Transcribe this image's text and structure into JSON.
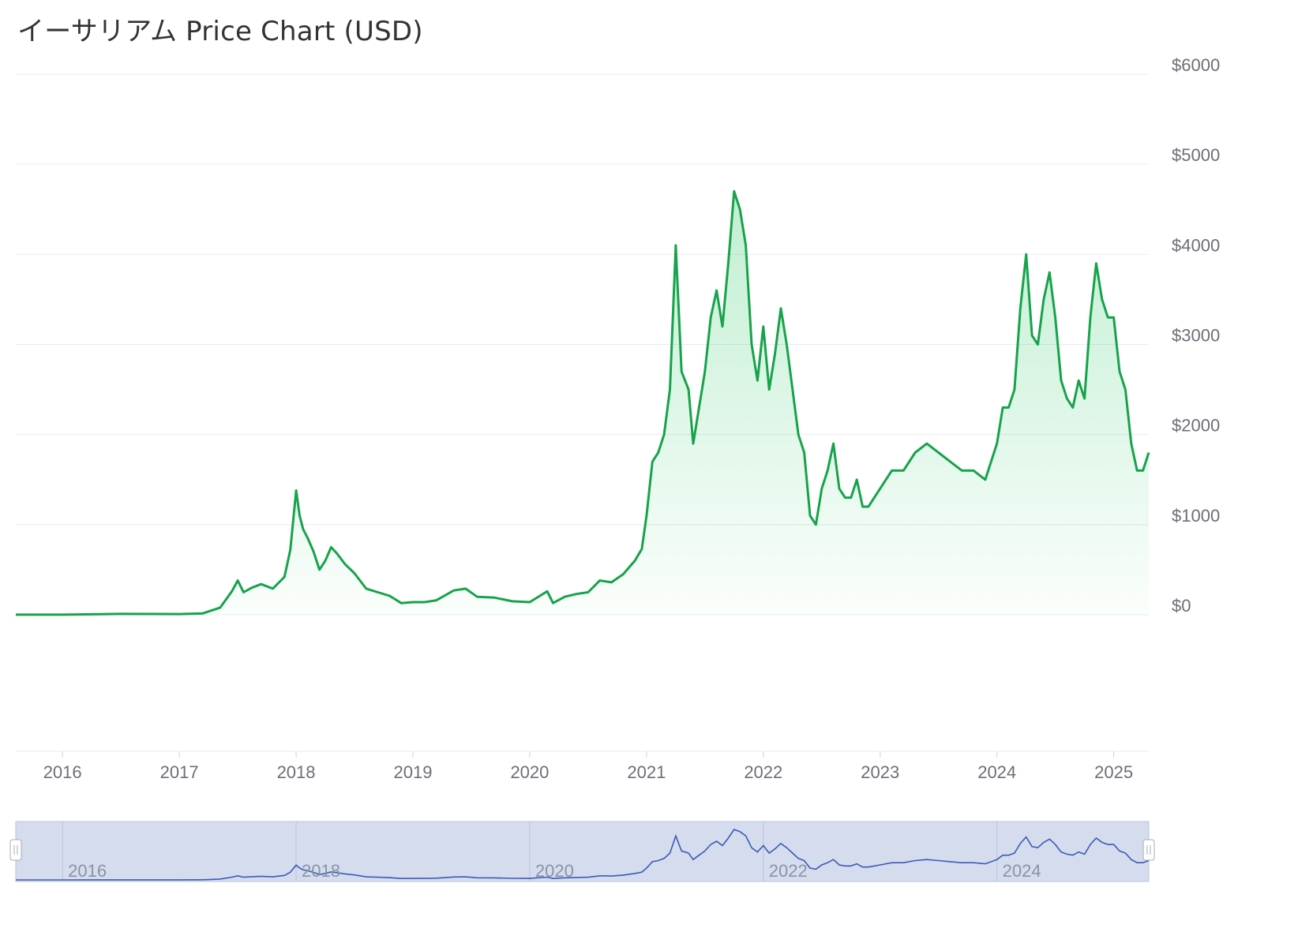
{
  "header": {
    "title": "イーサリアム Price Chart (USD)"
  },
  "colors": {
    "line": "#16a34a",
    "fill": "#22c55e",
    "grid": "#e9ebee",
    "tick_text": "#6b6f76",
    "navigator_bg": "#d5dcee",
    "navigator_line": "#3b5bb5",
    "navigator_handle": "#ffffff"
  },
  "chart_data": {
    "type": "area",
    "title": "イーサリアム Price Chart (USD)",
    "xlabel": "",
    "ylabel": "",
    "ylim": [
      0,
      6000
    ],
    "xlim": [
      2015.6,
      2025.3
    ],
    "y_ticks": [
      "$0",
      "$1000",
      "$2000",
      "$3000",
      "$4000",
      "$5000",
      "$6000"
    ],
    "y_tick_values": [
      0,
      1000,
      2000,
      3000,
      4000,
      5000,
      6000
    ],
    "x_ticks": [
      "2016",
      "2017",
      "2018",
      "2019",
      "2020",
      "2021",
      "2022",
      "2023",
      "2024",
      "2025"
    ],
    "x_tick_values": [
      2016,
      2017,
      2018,
      2019,
      2020,
      2021,
      2022,
      2023,
      2024,
      2025
    ],
    "grid": true,
    "navigator": {
      "x_ticks": [
        "2016",
        "2018",
        "2020",
        "2022",
        "2024"
      ],
      "x_tick_values": [
        2016,
        2018,
        2020,
        2022,
        2024
      ]
    },
    "series": [
      {
        "x": [
          2015.6,
          2016.0,
          2016.5,
          2017.0,
          2017.2,
          2017.35,
          2017.45,
          2017.5,
          2017.55,
          2017.62,
          2017.7,
          2017.8,
          2017.9,
          2017.95,
          2018.0,
          2018.03,
          2018.06,
          2018.1,
          2018.15,
          2018.2,
          2018.25,
          2018.3,
          2018.35,
          2018.42,
          2018.5,
          2018.6,
          2018.7,
          2018.8,
          2018.9,
          2019.0,
          2019.1,
          2019.2,
          2019.35,
          2019.45,
          2019.55,
          2019.7,
          2019.85,
          2020.0,
          2020.1,
          2020.15,
          2020.2,
          2020.3,
          2020.4,
          2020.5,
          2020.6,
          2020.7,
          2020.8,
          2020.9,
          2020.96,
          2021.0,
          2021.05,
          2021.1,
          2021.15,
          2021.2,
          2021.25,
          2021.3,
          2021.36,
          2021.4,
          2021.45,
          2021.5,
          2021.55,
          2021.6,
          2021.65,
          2021.7,
          2021.75,
          2021.8,
          2021.85,
          2021.9,
          2021.95,
          2022.0,
          2022.05,
          2022.1,
          2022.15,
          2022.2,
          2022.25,
          2022.3,
          2022.35,
          2022.4,
          2022.45,
          2022.5,
          2022.55,
          2022.6,
          2022.65,
          2022.7,
          2022.75,
          2022.8,
          2022.85,
          2022.9,
          2022.95,
          2023.0,
          2023.1,
          2023.2,
          2023.3,
          2023.4,
          2023.5,
          2023.6,
          2023.7,
          2023.8,
          2023.9,
          2024.0,
          2024.05,
          2024.1,
          2024.15,
          2024.2,
          2024.25,
          2024.3,
          2024.35,
          2024.4,
          2024.45,
          2024.5,
          2024.55,
          2024.6,
          2024.65,
          2024.7,
          2024.75,
          2024.8,
          2024.85,
          2024.9,
          2024.95,
          2025.0,
          2025.05,
          2025.1,
          2025.15,
          2025.2,
          2025.25,
          2025.3
        ],
        "values": [
          1,
          1,
          10,
          8,
          15,
          80,
          260,
          380,
          250,
          300,
          340,
          290,
          420,
          720,
          1380,
          1100,
          950,
          850,
          700,
          500,
          600,
          750,
          680,
          560,
          460,
          290,
          250,
          210,
          130,
          140,
          140,
          160,
          270,
          290,
          200,
          190,
          150,
          140,
          220,
          260,
          130,
          200,
          230,
          250,
          380,
          360,
          450,
          600,
          730,
          1100,
          1700,
          1800,
          2000,
          2500,
          4100,
          2700,
          2500,
          1900,
          2300,
          2700,
          3300,
          3600,
          3200,
          3900,
          4700,
          4500,
          4100,
          3000,
          2600,
          3200,
          2500,
          2900,
          3400,
          3000,
          2500,
          2000,
          1800,
          1100,
          1000,
          1400,
          1600,
          1900,
          1400,
          1300,
          1300,
          1500,
          1200,
          1200,
          1300,
          1400,
          1600,
          1600,
          1800,
          1900,
          1800,
          1700,
          1600,
          1600,
          1500,
          1900,
          2300,
          2300,
          2500,
          3400,
          4000,
          3100,
          3000,
          3500,
          3800,
          3300,
          2600,
          2400,
          2300,
          2600,
          2400,
          3300,
          3900,
          3500,
          3300,
          3300,
          2700,
          2500,
          1900,
          1600,
          1600,
          1800
        ]
      }
    ]
  }
}
